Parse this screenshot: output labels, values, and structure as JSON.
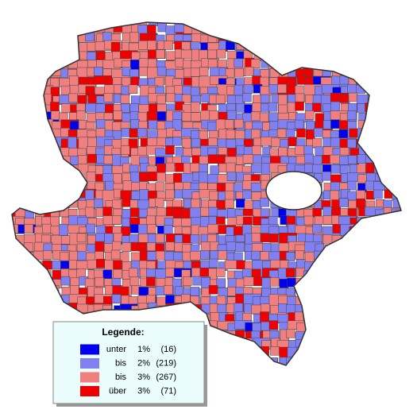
{
  "legend": {
    "title": "Legende:",
    "items": [
      {
        "label": "unter",
        "threshold": "1%",
        "count": "(16)",
        "color": "#0000ee"
      },
      {
        "label": "bis",
        "threshold": "2%",
        "count": "(219)",
        "color": "#8080f0"
      },
      {
        "label": "bis",
        "threshold": "3%",
        "count": "(267)",
        "color": "#f08080"
      },
      {
        "label": "über",
        "threshold": "3%",
        "count": "(71)",
        "color": "#ee0000"
      }
    ]
  }
}
